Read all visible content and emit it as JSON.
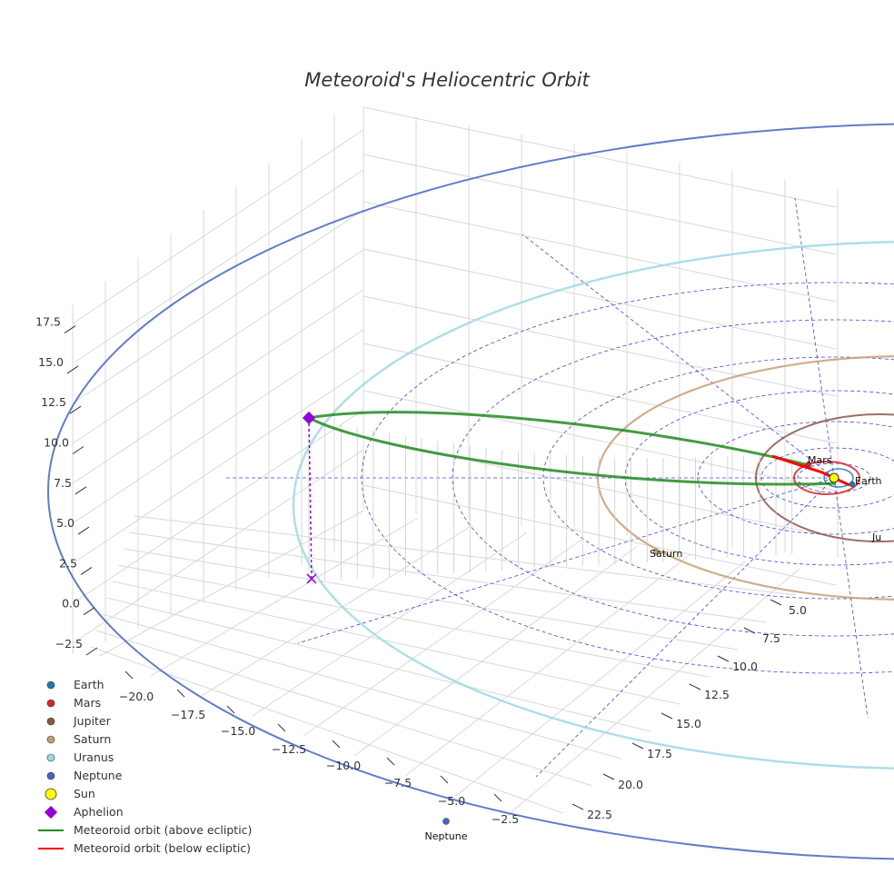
{
  "title": "Meteoroid's Heliocentric Orbit",
  "colors": {
    "earth": "#1f77b4",
    "mars": "#d62728",
    "jupiter": "#8c564b",
    "saturn": "#c89f74",
    "uranus": "#9fd8e3",
    "neptune": "#4466c0",
    "sun": "#ffff00",
    "aphelion": "#9400d3",
    "above": "#228b22",
    "below": "#ff0000",
    "grid_dash": "#4444dd"
  },
  "chart_data": {
    "type": "scatter3d",
    "title": "Meteoroid's Heliocentric Orbit",
    "axes": {
      "x": {
        "label": "",
        "ticks": [
          "−20.0",
          "−17.5",
          "−15.0",
          "−12.5",
          "−10.0",
          "−7.5",
          "−5.0",
          "−2.5"
        ],
        "range": [
          -21,
          -1
        ]
      },
      "y": {
        "label": "",
        "ticks": [
          "5.0",
          "7.5",
          "10.0",
          "12.5",
          "15.0",
          "17.5",
          "20.0",
          "22.5"
        ],
        "range": [
          3,
          24
        ]
      },
      "z": {
        "label": "",
        "ticks": [
          "−2.5",
          "0.0",
          "2.5",
          "5.0",
          "7.5",
          "10.0",
          "12.5",
          "15.0",
          "17.5"
        ],
        "range": [
          -3.5,
          18.5
        ]
      }
    },
    "planets": [
      {
        "name": "Earth",
        "orbit_radius_au": 1.0,
        "label": "Earth"
      },
      {
        "name": "Mars",
        "orbit_radius_au": 1.52,
        "label": "Mars"
      },
      {
        "name": "Jupiter",
        "orbit_radius_au": 5.2,
        "label": "Ju"
      },
      {
        "name": "Saturn",
        "orbit_radius_au": 9.54,
        "label": "Saturn"
      },
      {
        "name": "Uranus",
        "orbit_radius_au": 19.2,
        "label": ""
      },
      {
        "name": "Neptune",
        "orbit_radius_au": 30.1,
        "label": "Neptune"
      }
    ],
    "sun": {
      "x": 0,
      "y": 0,
      "z": 0
    },
    "aphelion": {
      "distance_au": 17.0,
      "z_au": 12.0
    },
    "meteoroid_orbit": {
      "perihelion_au": 0.9,
      "aphelion_au": 17.0,
      "segments": [
        "above ecliptic",
        "below ecliptic"
      ]
    }
  },
  "legend": [
    {
      "label": "Earth",
      "symbol": "dot",
      "color": "#1f77b4"
    },
    {
      "label": "Mars",
      "symbol": "dot",
      "color": "#d62728"
    },
    {
      "label": "Jupiter",
      "symbol": "dot",
      "color": "#8c564b"
    },
    {
      "label": "Saturn",
      "symbol": "dot",
      "color": "#c89f74"
    },
    {
      "label": "Uranus",
      "symbol": "dot",
      "color": "#9fd8e3"
    },
    {
      "label": "Neptune",
      "symbol": "dot",
      "color": "#4466c0"
    },
    {
      "label": "Sun",
      "symbol": "big-dot",
      "color": "#ffff00"
    },
    {
      "label": "Aphelion",
      "symbol": "diamond",
      "color": "#9400d3"
    },
    {
      "label": "Meteoroid orbit (above ecliptic)",
      "symbol": "line",
      "color": "#228b22"
    },
    {
      "label": "Meteoroid orbit (below ecliptic)",
      "symbol": "line",
      "color": "#ff0000"
    }
  ]
}
